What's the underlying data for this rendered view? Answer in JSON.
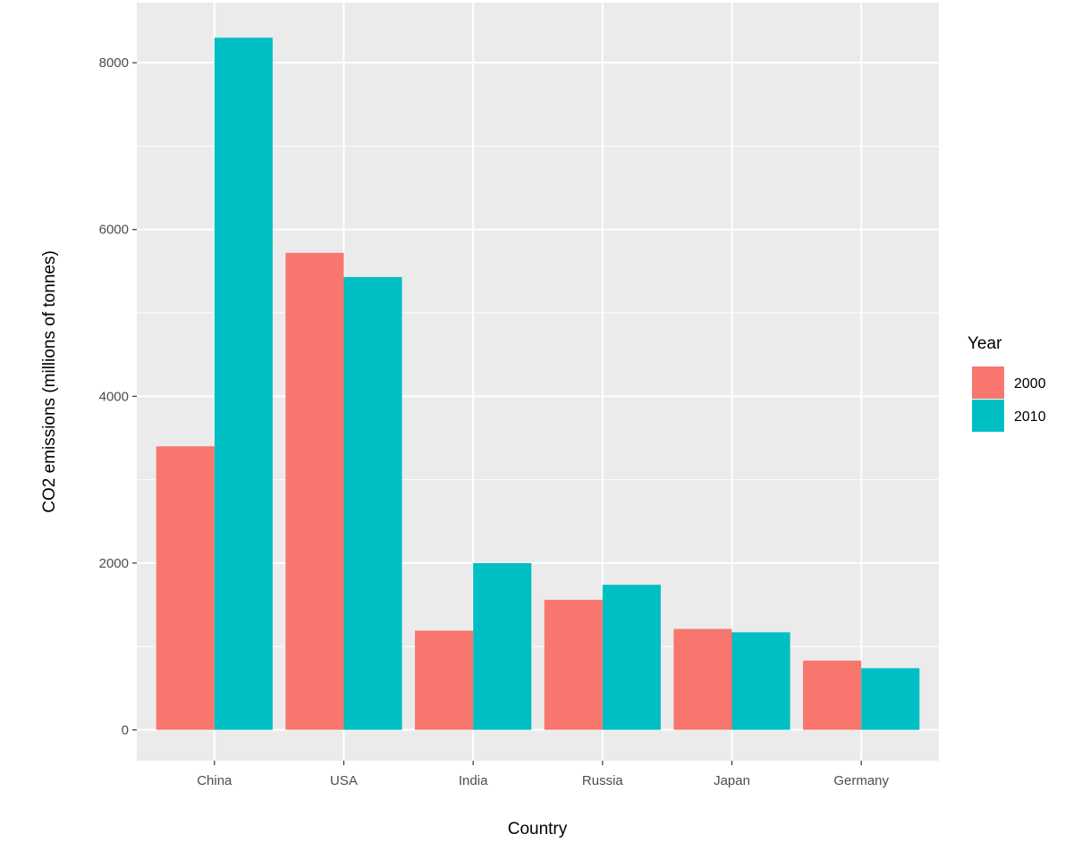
{
  "chart_data": {
    "type": "bar",
    "title": "",
    "xlabel": "Country",
    "ylabel": "CO2 emissions (millions of tonnes)",
    "categories": [
      "China",
      "USA",
      "India",
      "Russia",
      "Japan",
      "Germany"
    ],
    "series": [
      {
        "name": "2000",
        "color": "#F8766D",
        "values": [
          3400,
          5720,
          1190,
          1560,
          1210,
          830
        ]
      },
      {
        "name": "2010",
        "color": "#00BFC4",
        "values": [
          8300,
          5430,
          2000,
          1740,
          1170,
          740
        ]
      }
    ],
    "ylim": [
      -370,
      8720
    ],
    "yticks": [
      0,
      2000,
      4000,
      6000,
      8000
    ],
    "ytick_labels": [
      "0",
      "2000",
      "4000",
      "6000",
      "8000"
    ],
    "grid": true,
    "panel_background": "#EBEBEB",
    "legend": {
      "title": "Year",
      "position": "right"
    }
  }
}
